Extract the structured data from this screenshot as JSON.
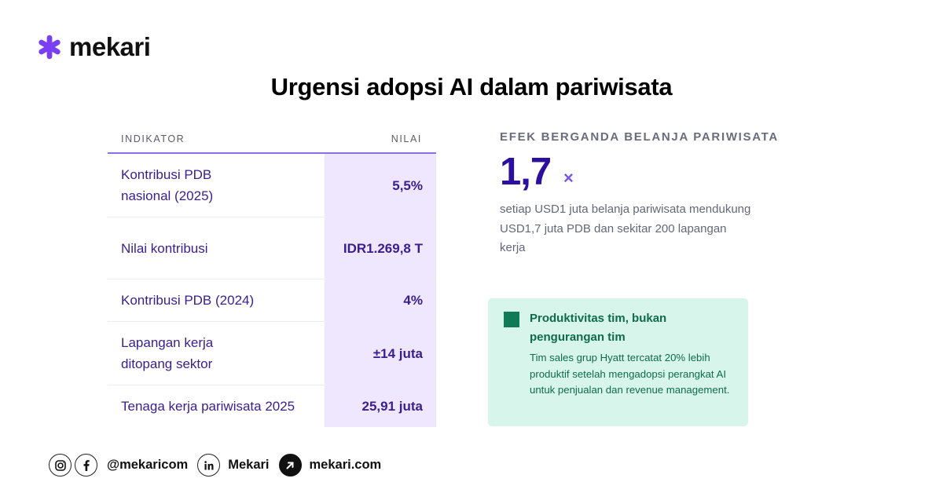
{
  "brand": {
    "name": "mekari",
    "accent": "#7a3ff2"
  },
  "title": "Urgensi adopsi AI dalam pariwisata",
  "table": {
    "headers": {
      "indicator": "INDIKATOR",
      "value": "NILAI"
    },
    "rows": [
      {
        "indicator": "Kontribusi PDB nasional (2025)",
        "value": "5,5%"
      },
      {
        "indicator": "Nilai kontribusi",
        "value": "IDR1.269,8 T"
      },
      {
        "indicator": "Kontribusi PDB (2024)",
        "value": "4%"
      },
      {
        "indicator": "Lapangan kerja ditopang sektor",
        "value": "±14 juta"
      },
      {
        "indicator": "Tenaga kerja pariwisata 2025",
        "value": "25,91 juta"
      }
    ]
  },
  "multiplier": {
    "label": "EFEK BERGANDA BELANJA PARIWISATA",
    "value": "1,7",
    "suffix": "×",
    "description": "setiap USD1 juta belanja pariwisata mendukung USD1,7 juta PDB dan sekitar 200 lapangan kerja"
  },
  "callout": {
    "title": "Produktivitas tim, bukan pengurangan tim",
    "body": "Tim sales grup Hyatt tercatat 20% lebih produktif setelah mengadopsi perangkat AI untuk penjualan dan revenue management."
  },
  "footer": {
    "social_handle": "@mekaricom",
    "linkedin": "Mekari",
    "website": "mekari.com",
    "icons": [
      "instagram-icon",
      "facebook-icon",
      "linkedin-icon",
      "arrow-up-right-icon"
    ]
  }
}
